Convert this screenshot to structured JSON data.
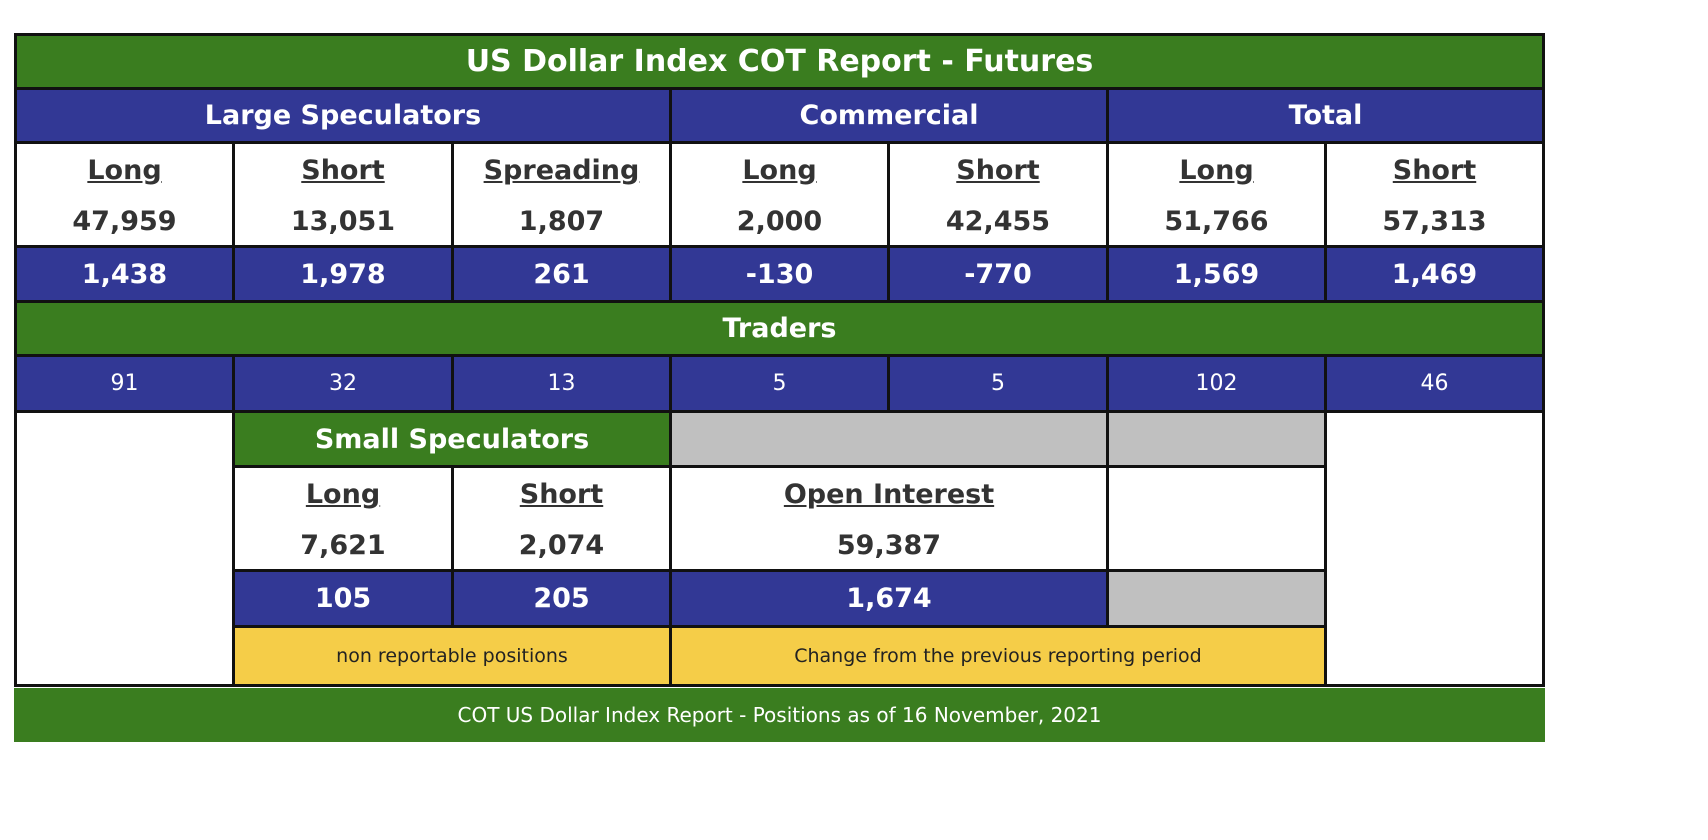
{
  "title": "US Dollar Index COT Report - Futures",
  "groups": {
    "large_speculators": "Large Speculators",
    "commercial": "Commercial",
    "total": "Total",
    "traders": "Traders",
    "small_speculators": "Small Speculators"
  },
  "positions": [
    {
      "label": "Long",
      "value": "47,959",
      "change": "1,438",
      "traders": "91"
    },
    {
      "label": "Short",
      "value": "13,051",
      "change": "1,978",
      "traders": "32"
    },
    {
      "label": "Spreading",
      "value": "1,807",
      "change": "261",
      "traders": "13"
    },
    {
      "label": "Long",
      "value": "2,000",
      "change": "-130",
      "traders": "5"
    },
    {
      "label": "Short",
      "value": "42,455",
      "change": "-770",
      "traders": "5"
    },
    {
      "label": "Long",
      "value": "51,766",
      "change": "1,569",
      "traders": "102"
    },
    {
      "label": "Short",
      "value": "57,313",
      "change": "1,469",
      "traders": "46"
    }
  ],
  "small_speculators": [
    {
      "label": "Long",
      "value": "7,621",
      "change": "105"
    },
    {
      "label": "Short",
      "value": "2,074",
      "change": "205"
    }
  ],
  "open_interest": {
    "label": "Open Interest",
    "value": "59,387",
    "change": "1,674"
  },
  "notes": {
    "non_reportable": "non reportable positions",
    "change": "Change from the previous reporting period"
  },
  "footer": "COT US Dollar Index Report - Positions as of 16 November, 2021",
  "colors": {
    "green": "#3a7d1f",
    "blue": "#323895",
    "grey": "#c0c0c0",
    "yellow": "#f5cd48",
    "border": "#111111"
  }
}
